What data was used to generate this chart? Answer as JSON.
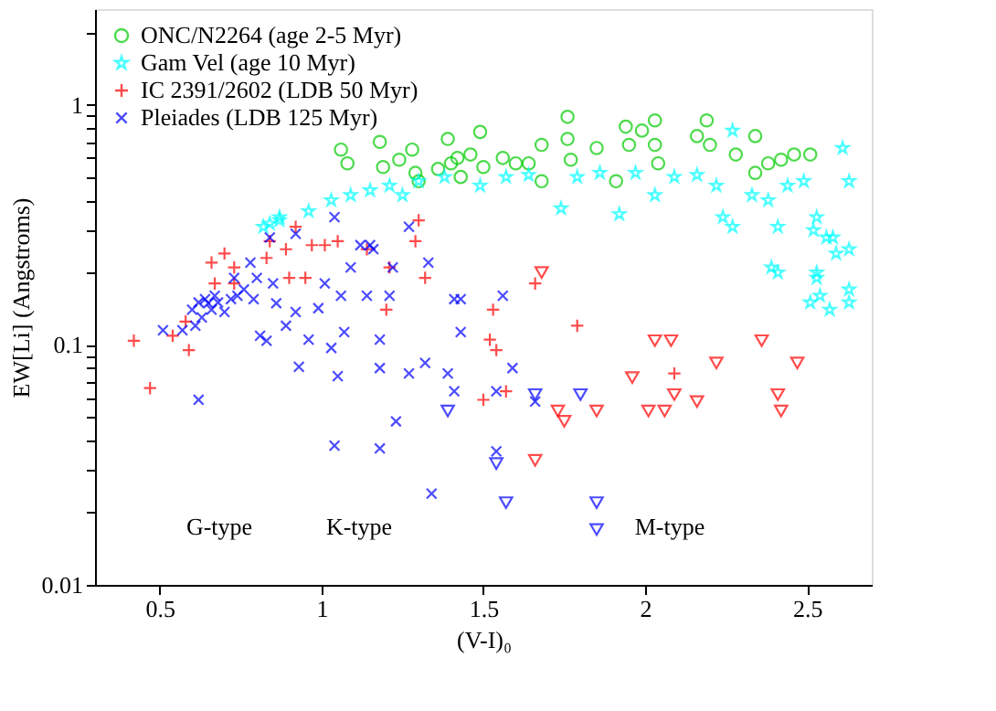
{
  "chart_data": {
    "type": "scatter",
    "xlabel": "(V-I)₀",
    "ylabel": "EW[Li] (Angstroms)",
    "xlim": [
      0.3,
      2.7
    ],
    "xticks": [
      0.5,
      1,
      1.5,
      2,
      2.5
    ],
    "ylim": [
      0.01,
      2.5
    ],
    "log": "y",
    "yticks": [
      0.01,
      {
        "value": 0.02,
        "label": null
      },
      {
        "value": 0.03,
        "label": null
      },
      {
        "value": 0.04,
        "label": null
      },
      {
        "value": 0.05,
        "label": null
      },
      {
        "value": 0.06,
        "label": null
      },
      {
        "value": 0.07,
        "label": null
      },
      {
        "value": 0.08,
        "label": null
      },
      {
        "value": 0.09,
        "label": null
      },
      0.1,
      {
        "value": 0.2,
        "label": null
      },
      {
        "value": 0.3,
        "label": null
      },
      {
        "value": 0.4,
        "label": null
      },
      {
        "value": 0.5,
        "label": null
      },
      {
        "value": 0.6,
        "label": null
      },
      {
        "value": 0.7,
        "label": null
      },
      {
        "value": 0.8,
        "label": null
      },
      {
        "value": 0.9,
        "label": null
      },
      1,
      {
        "value": 2,
        "label": null
      }
    ],
    "grid": false,
    "legend": "top left",
    "annotations": [
      "G-type",
      "K-type",
      "M-type"
    ],
    "series": [
      {
        "name": "ONC/N2264 (age 2-5 Myr)",
        "color": "#00cc00",
        "marker": "circle",
        "x": [
          1.06,
          1.08,
          1.18,
          1.19,
          1.24,
          1.28,
          1.29,
          1.3,
          1.36,
          1.39,
          1.4,
          1.42,
          1.43,
          1.46,
          1.49,
          1.5,
          1.56,
          1.6,
          1.64,
          1.68,
          1.68,
          1.76,
          1.76,
          1.77,
          1.85,
          1.91,
          1.94,
          1.95,
          1.99,
          2.03,
          2.03,
          2.04,
          2.16,
          2.19,
          2.2,
          2.28,
          2.34,
          2.34,
          2.38,
          2.42,
          2.46,
          2.51
        ],
        "values": [
          0.65,
          0.57,
          0.7,
          0.55,
          0.59,
          0.65,
          0.52,
          0.48,
          0.54,
          0.72,
          0.57,
          0.6,
          0.5,
          0.62,
          0.77,
          0.55,
          0.6,
          0.57,
          0.57,
          0.68,
          0.48,
          0.89,
          0.72,
          0.59,
          0.66,
          0.48,
          0.81,
          0.68,
          0.78,
          0.86,
          0.68,
          0.57,
          0.74,
          0.86,
          0.68,
          0.62,
          0.74,
          0.52,
          0.57,
          0.59,
          0.62,
          0.62
        ]
      },
      {
        "name": "Gam Vel (age 10 Myr)",
        "color": "#00ffff",
        "marker": "star",
        "x": [
          0.82,
          0.84,
          0.87,
          0.87,
          0.96,
          1.03,
          1.09,
          1.15,
          1.21,
          1.25,
          1.3,
          1.38,
          1.49,
          1.57,
          1.64,
          1.74,
          1.79,
          1.86,
          1.92,
          1.97,
          2.03,
          2.09,
          2.16,
          2.22,
          2.24,
          2.27,
          2.27,
          2.33,
          2.38,
          2.39,
          2.41,
          2.41,
          2.44,
          2.49,
          2.51,
          2.52,
          2.53,
          2.53,
          2.53,
          2.54,
          2.56,
          2.57,
          2.58,
          2.59,
          2.61,
          2.63,
          2.63,
          2.63,
          2.63
        ],
        "values": [
          0.31,
          0.32,
          0.34,
          0.33,
          0.36,
          0.4,
          0.42,
          0.44,
          0.46,
          0.42,
          0.48,
          0.5,
          0.46,
          0.5,
          0.51,
          0.37,
          0.5,
          0.52,
          0.35,
          0.52,
          0.42,
          0.5,
          0.51,
          0.46,
          0.34,
          0.31,
          0.78,
          0.42,
          0.4,
          0.21,
          0.2,
          0.31,
          0.46,
          0.48,
          0.15,
          0.3,
          0.34,
          0.2,
          0.19,
          0.16,
          0.28,
          0.14,
          0.28,
          0.24,
          0.66,
          0.48,
          0.25,
          0.17,
          0.15
        ]
      },
      {
        "name": "IC 2391/2602 (LDB 50 Myr)",
        "color": "#ff0000",
        "marker": "cross",
        "x": [
          0.42,
          0.47,
          0.54,
          0.58,
          0.59,
          0.66,
          0.67,
          0.7,
          0.73,
          0.73,
          0.83,
          0.84,
          0.89,
          0.9,
          0.92,
          0.95,
          0.97,
          1.01,
          1.05,
          1.14,
          1.2,
          1.21,
          1.29,
          1.3,
          1.32,
          1.5,
          1.52,
          1.53,
          1.54,
          1.57,
          1.66,
          1.79,
          2.09
        ],
        "values": [
          0.104,
          0.066,
          0.109,
          0.125,
          0.095,
          0.22,
          0.18,
          0.24,
          0.21,
          0.18,
          0.23,
          0.27,
          0.25,
          0.19,
          0.31,
          0.19,
          0.26,
          0.26,
          0.27,
          0.25,
          0.14,
          0.21,
          0.27,
          0.33,
          0.19,
          0.059,
          0.105,
          0.14,
          0.095,
          0.064,
          0.18,
          0.12,
          0.076
        ]
      },
      {
        "color": "#ff0000",
        "marker": "triangle",
        "x": [
          1.68,
          2.03,
          2.08,
          2.36,
          2.22,
          2.47,
          1.96,
          2.09,
          2.16,
          2.41,
          1.73,
          1.75,
          1.85,
          2.01,
          2.06,
          2.42,
          1.66
        ],
        "values": [
          0.2,
          0.104,
          0.104,
          0.104,
          0.084,
          0.084,
          0.073,
          0.062,
          0.058,
          0.062,
          0.053,
          0.048,
          0.053,
          0.053,
          0.053,
          0.053,
          0.033
        ]
      },
      {
        "name": "Pleiades (LDB 125 Myr)",
        "color": "#0000ff",
        "marker": "x",
        "x": [
          0.51,
          0.57,
          0.6,
          0.61,
          0.62,
          0.62,
          0.63,
          0.64,
          0.65,
          0.66,
          0.67,
          0.68,
          0.7,
          0.72,
          0.73,
          0.74,
          0.76,
          0.78,
          0.79,
          0.8,
          0.81,
          0.83,
          0.84,
          0.85,
          0.86,
          0.89,
          0.92,
          0.92,
          0.93,
          0.96,
          0.99,
          1.01,
          1.03,
          1.04,
          1.04,
          1.05,
          1.06,
          1.07,
          1.09,
          1.12,
          1.14,
          1.15,
          1.16,
          1.18,
          1.18,
          1.18,
          1.21,
          1.22,
          1.23,
          1.27,
          1.27,
          1.32,
          1.33,
          1.34,
          1.39,
          1.41,
          1.41,
          1.43,
          1.43,
          1.54,
          1.54,
          1.56,
          1.59,
          1.66
        ],
        "values": [
          0.115,
          0.115,
          0.14,
          0.12,
          0.059,
          0.15,
          0.13,
          0.155,
          0.149,
          0.14,
          0.16,
          0.15,
          0.137,
          0.155,
          0.19,
          0.16,
          0.17,
          0.22,
          0.155,
          0.19,
          0.109,
          0.104,
          0.28,
          0.18,
          0.149,
          0.12,
          0.137,
          0.29,
          0.081,
          0.105,
          0.142,
          0.18,
          0.097,
          0.34,
          0.038,
          0.074,
          0.16,
          0.113,
          0.21,
          0.26,
          0.16,
          0.26,
          0.25,
          0.105,
          0.08,
          0.037,
          0.16,
          0.21,
          0.048,
          0.076,
          0.31,
          0.084,
          0.22,
          0.024,
          0.076,
          0.155,
          0.064,
          0.155,
          0.113,
          0.064,
          0.036,
          0.16,
          0.08,
          0.058
        ]
      },
      {
        "color": "#0000ff",
        "marker": "triangle",
        "x": [
          1.39,
          1.66,
          1.8,
          1.54,
          1.57,
          1.85,
          1.85
        ],
        "values": [
          0.053,
          0.062,
          0.062,
          0.032,
          0.022,
          0.022,
          0.017
        ]
      }
    ]
  }
}
